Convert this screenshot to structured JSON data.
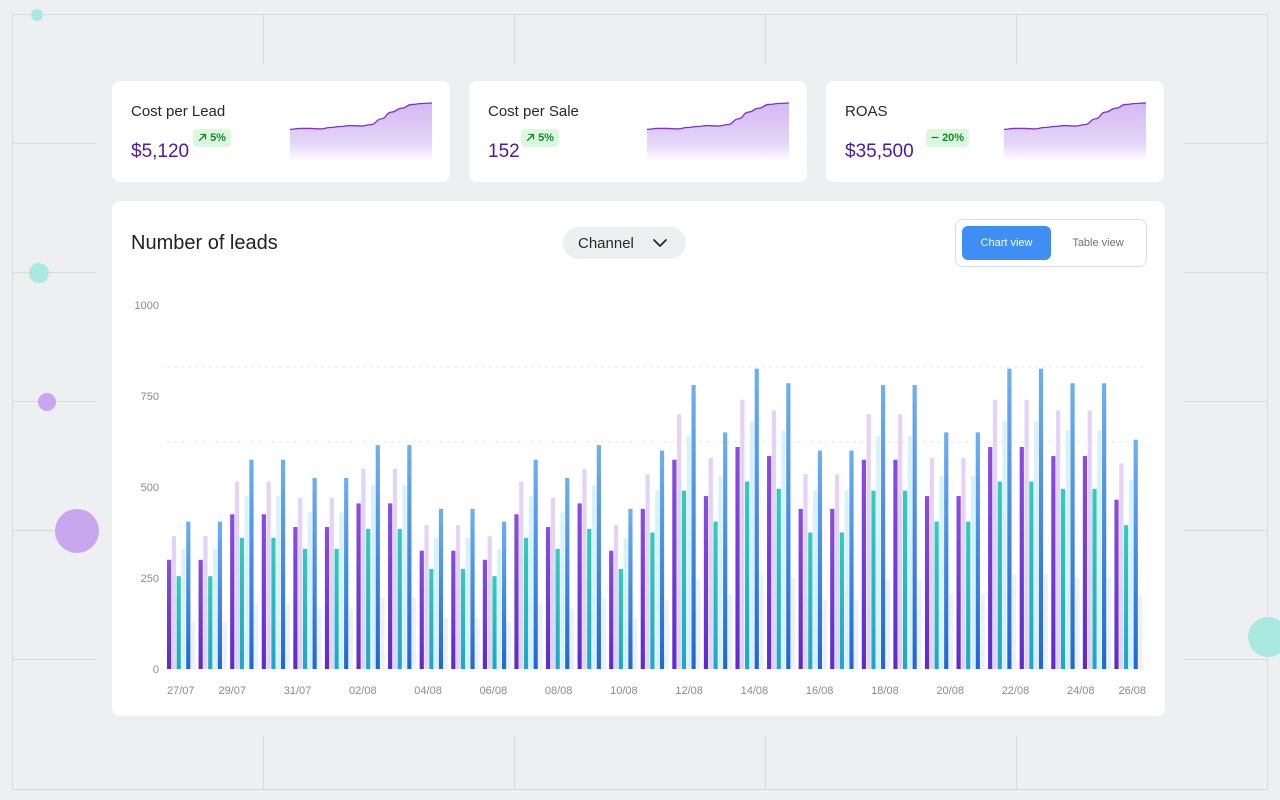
{
  "kpis": [
    {
      "title": "Cost per Lead",
      "value": "$5,120",
      "change": "5%",
      "trend_icon": "arrow-up-right-icon"
    },
    {
      "title": "Cost per Sale",
      "value": "152",
      "change": "5%",
      "trend_icon": "arrow-up-right-icon"
    },
    {
      "title": "ROAS",
      "value": "$35,500",
      "change": "20%",
      "trend_icon": "dash-icon"
    }
  ],
  "sparkline": {
    "values": [
      10,
      11,
      11,
      10.5,
      12,
      13,
      14,
      13.5,
      15,
      21,
      28,
      32,
      36,
      37,
      37.5
    ]
  },
  "panel": {
    "title": "Number of leads",
    "filter": {
      "label": "Channel",
      "icon": "chevron-down-icon"
    },
    "views": {
      "chart": "Chart view",
      "table": "Table view",
      "active": "chart"
    }
  },
  "colors": {
    "accent": "#3f8ef4",
    "value_text": "#4a1ba0",
    "badge_bg": "#dcf7df",
    "badge_text": "#138a2a",
    "series": [
      "#8a4ee0",
      "#e2cdf7",
      "#2bc3b4",
      "#d5f0f6",
      "#4f9cea",
      "#e0eaff"
    ]
  },
  "chart_data": {
    "type": "bar",
    "y_ticks": [
      "1000",
      "750",
      "500",
      "250",
      "0"
    ],
    "ylim": [
      0,
      1000
    ],
    "x_labels": [
      "27/07",
      "29/07",
      "31/07",
      "02/08",
      "04/08",
      "06/08",
      "08/08",
      "10/08",
      "12/08",
      "14/08",
      "16/08",
      "18/08",
      "20/08",
      "22/08",
      "24/08",
      "26/08"
    ],
    "series": [
      {
        "values": [
          300,
          300,
          425,
          425,
          390,
          390,
          455,
          455,
          325,
          325,
          300,
          425,
          390,
          455,
          325,
          440,
          575,
          475,
          610,
          585,
          440,
          440,
          575,
          575,
          475,
          475,
          610,
          610,
          585,
          585,
          465
        ]
      },
      {
        "values": [
          365,
          365,
          515,
          515,
          470,
          470,
          550,
          550,
          395,
          395,
          365,
          515,
          470,
          550,
          395,
          535,
          700,
          580,
          740,
          710,
          535,
          535,
          700,
          700,
          580,
          580,
          740,
          740,
          710,
          710,
          565
        ]
      },
      {
        "values": [
          255,
          255,
          360,
          360,
          330,
          330,
          385,
          385,
          275,
          275,
          255,
          360,
          330,
          385,
          275,
          375,
          490,
          405,
          515,
          495,
          375,
          375,
          490,
          490,
          405,
          405,
          515,
          515,
          495,
          495,
          395
        ]
      },
      {
        "values": [
          330,
          330,
          475,
          475,
          430,
          430,
          505,
          505,
          360,
          360,
          330,
          475,
          430,
          505,
          360,
          490,
          640,
          530,
          680,
          655,
          490,
          490,
          640,
          640,
          530,
          530,
          680,
          680,
          655,
          655,
          520
        ]
      },
      {
        "values": [
          405,
          405,
          575,
          575,
          525,
          525,
          615,
          615,
          440,
          440,
          405,
          575,
          525,
          615,
          440,
          600,
          780,
          650,
          825,
          785,
          600,
          600,
          780,
          780,
          650,
          650,
          825,
          825,
          785,
          785,
          630
        ]
      },
      {
        "values": [
          130,
          130,
          180,
          180,
          165,
          165,
          195,
          195,
          140,
          140,
          130,
          180,
          165,
          195,
          140,
          190,
          245,
          205,
          260,
          250,
          190,
          190,
          245,
          245,
          205,
          205,
          260,
          260,
          250,
          250,
          200
        ]
      }
    ]
  }
}
